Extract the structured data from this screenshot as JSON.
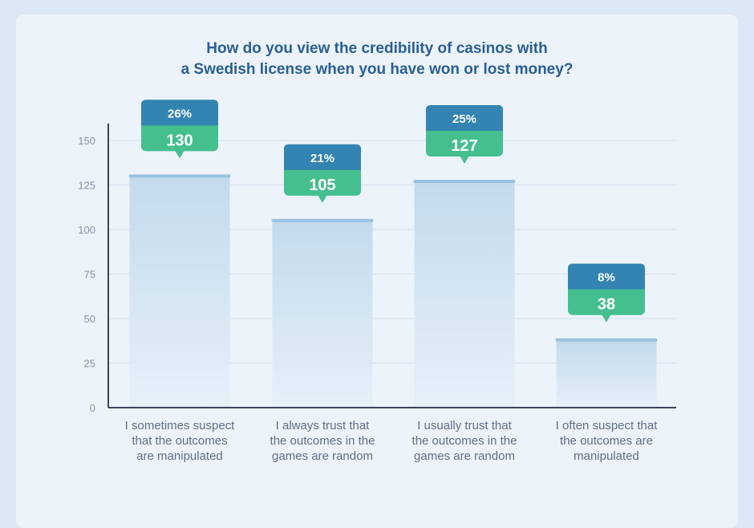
{
  "chart_data": {
    "type": "bar",
    "title": "How do you view the credibility of casinos with a Swedish license when you have won or lost money?",
    "title_lines": [
      "How do you view the credibility of casinos with",
      "a Swedish license when you have won or lost money?"
    ],
    "categories": [
      "I sometimes suspect that the outcomes are manipulated",
      "I always trust that the outcomes in the games are random",
      "I usually trust that the outcomes in the games are random",
      "I often suspect that the outcomes are manipulated"
    ],
    "category_lines": [
      [
        "I sometimes suspect",
        "that the outcomes",
        "are manipulated"
      ],
      [
        "I always trust that",
        "the outcomes in the",
        "games are random"
      ],
      [
        "I usually trust that",
        "the outcomes in the",
        "games are random"
      ],
      [
        "I often suspect that",
        "the outcomes are",
        "manipulated"
      ]
    ],
    "values": [
      130,
      105,
      127,
      38
    ],
    "percent_labels": [
      "26%",
      "21%",
      "25%",
      "8%"
    ],
    "ylim": [
      0,
      160
    ],
    "yticks": [
      0,
      25,
      50,
      75,
      100,
      125,
      150
    ],
    "grid": true,
    "xlabel": "",
    "ylabel": "",
    "colors": {
      "percent_box": "#3384b2",
      "value_box": "#46bf8f",
      "bar_top": "#98c4e0",
      "bar_fill": "#c6dced",
      "axis": "#3a4556",
      "grid": "#d5e1ee",
      "tick_text": "#8593a8"
    }
  }
}
